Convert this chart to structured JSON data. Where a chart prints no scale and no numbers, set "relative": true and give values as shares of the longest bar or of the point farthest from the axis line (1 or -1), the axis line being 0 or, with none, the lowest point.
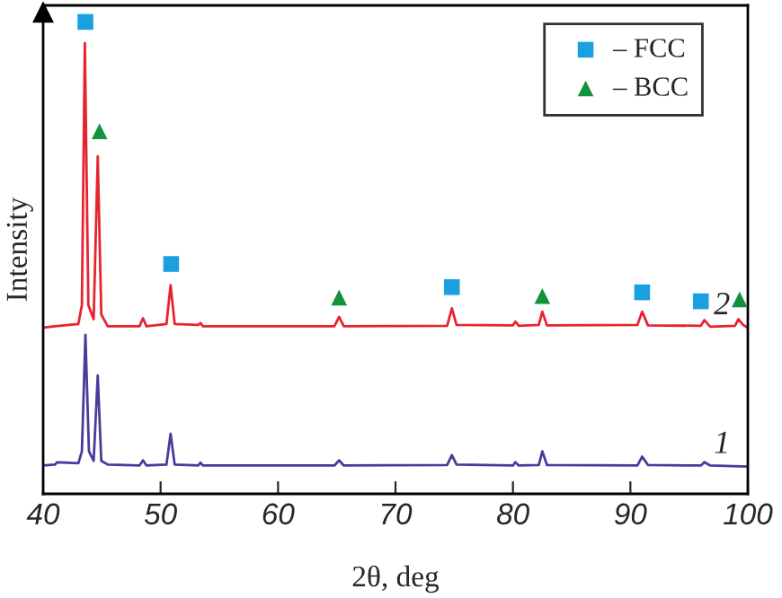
{
  "chart_data": {
    "type": "line",
    "relative": true,
    "xlabel": "2θ, deg",
    "ylabel": "Intensity",
    "xlim": [
      40,
      100
    ],
    "xticks": [
      40,
      50,
      60,
      70,
      80,
      90,
      100
    ],
    "grid": false,
    "legend": "top right",
    "series": [
      {
        "name": "2",
        "color": "#e8232f",
        "marker": "none",
        "x": [
          40,
          41,
          43.0,
          43.3,
          43.55,
          43.85,
          44.3,
          44.65,
          44.95,
          45.5,
          48.2,
          48.5,
          48.8,
          50.5,
          50.85,
          51.2,
          53.2,
          53.4,
          53.6,
          64.8,
          65.2,
          65.6,
          74.4,
          74.8,
          75.2,
          80.0,
          80.2,
          80.5,
          82.2,
          82.5,
          82.9,
          90.6,
          91.0,
          91.5,
          96.0,
          96.3,
          96.8,
          98.9,
          99.2,
          99.6,
          100
        ],
        "values": [
          0.352,
          0.355,
          0.36,
          0.4,
          0.955,
          0.4,
          0.37,
          0.715,
          0.38,
          0.355,
          0.355,
          0.372,
          0.355,
          0.36,
          0.442,
          0.36,
          0.358,
          0.362,
          0.355,
          0.355,
          0.375,
          0.355,
          0.356,
          0.393,
          0.358,
          0.357,
          0.365,
          0.356,
          0.358,
          0.386,
          0.357,
          0.358,
          0.386,
          0.357,
          0.356,
          0.368,
          0.354,
          0.356,
          0.37,
          0.358,
          0.352
        ]
      },
      {
        "name": "1",
        "color": "#4b3a9a",
        "marker": "none",
        "x": [
          40,
          41,
          41.2,
          43.0,
          43.3,
          43.6,
          43.9,
          44.3,
          44.65,
          44.95,
          45.5,
          48.2,
          48.5,
          48.8,
          50.5,
          50.85,
          51.2,
          53.2,
          53.4,
          53.6,
          64.8,
          65.2,
          65.6,
          74.4,
          74.8,
          75.2,
          80.0,
          80.2,
          80.5,
          82.2,
          82.5,
          82.9,
          90.6,
          91.0,
          91.5,
          96.0,
          96.3,
          96.8,
          100
        ],
        "values": [
          0.06,
          0.062,
          0.067,
          0.065,
          0.09,
          0.337,
          0.09,
          0.07,
          0.251,
          0.07,
          0.062,
          0.06,
          0.071,
          0.06,
          0.062,
          0.127,
          0.062,
          0.06,
          0.066,
          0.06,
          0.06,
          0.071,
          0.06,
          0.061,
          0.082,
          0.062,
          0.06,
          0.067,
          0.06,
          0.061,
          0.09,
          0.061,
          0.06,
          0.079,
          0.061,
          0.06,
          0.067,
          0.06,
          0.058
        ]
      },
      {
        "type": "scatter",
        "name": "– FCC",
        "color": "#1a9fe0",
        "marker": "square",
        "x": [
          43.6,
          50.9,
          74.8,
          91.0,
          96.0
        ],
        "values": [
          1.0,
          0.487,
          0.438,
          0.427,
          0.408
        ]
      },
      {
        "type": "scatter",
        "name": "– BCC",
        "color": "#14913c",
        "marker": "triangle",
        "x": [
          44.8,
          65.2,
          82.5,
          99.3
        ],
        "values": [
          0.768,
          0.416,
          0.419,
          0.412
        ]
      }
    ]
  }
}
